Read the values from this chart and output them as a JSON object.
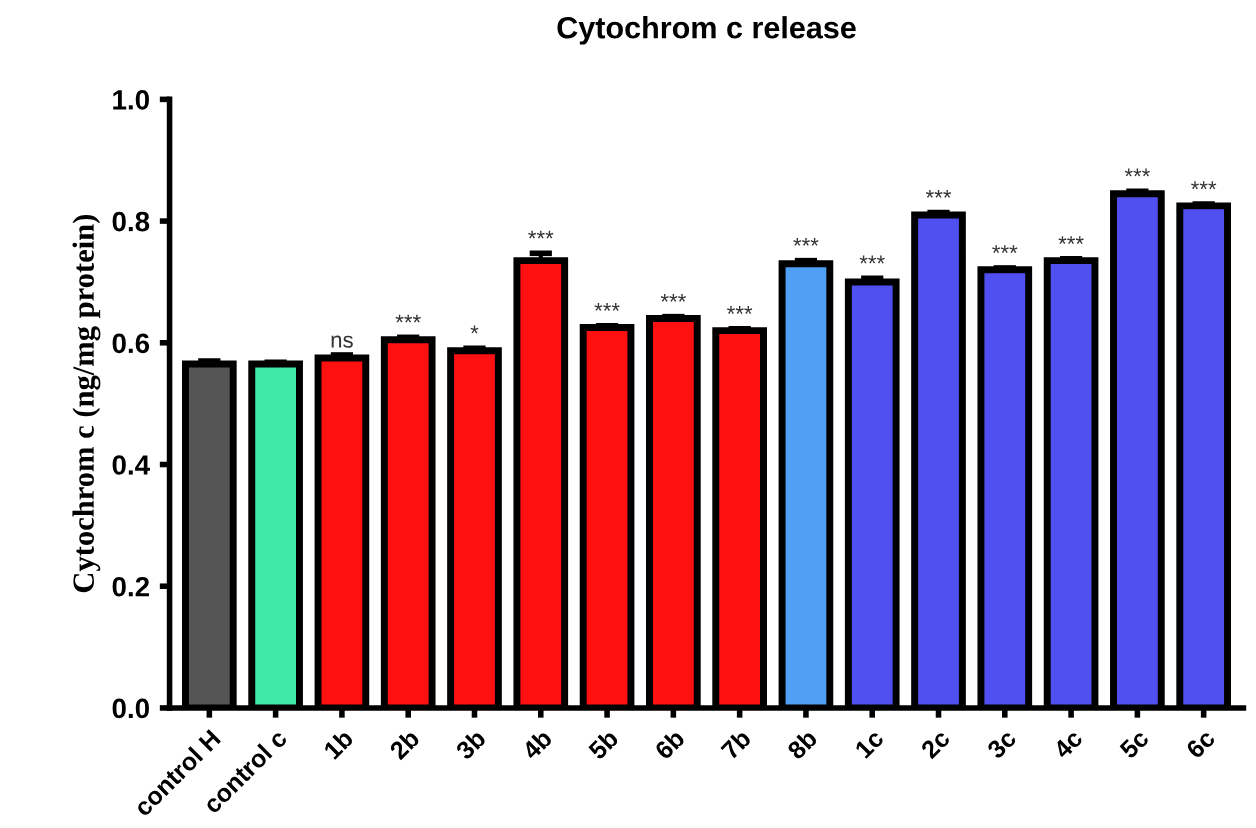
{
  "chart_data": {
    "type": "bar",
    "title": "Cytochrom c release",
    "ylabel": "Cytochrom c (ng/mg protein)",
    "categories": [
      "control H",
      "control c",
      "1b",
      "2b",
      "3b",
      "4b",
      "5b",
      "6b",
      "7b",
      "8b",
      "1c",
      "2c",
      "3c",
      "4c",
      "5c",
      "6c"
    ],
    "values": [
      0.565,
      0.565,
      0.575,
      0.605,
      0.587,
      0.735,
      0.625,
      0.64,
      0.62,
      0.73,
      0.7,
      0.81,
      0.72,
      0.735,
      0.845,
      0.825
    ],
    "errors": [
      0.005,
      0.003,
      0.005,
      0.004,
      0.004,
      0.012,
      0.003,
      0.003,
      0.003,
      0.005,
      0.006,
      0.004,
      0.003,
      0.003,
      0.004,
      0.003
    ],
    "colors": [
      "#555555",
      "#40e8a8",
      "#ff1010",
      "#ff1010",
      "#ff1010",
      "#ff1010",
      "#ff1010",
      "#ff1010",
      "#ff1010",
      "#4f9ff5",
      "#5050f0",
      "#5050f0",
      "#5050f0",
      "#5050f0",
      "#5050f0",
      "#5050f0"
    ],
    "ylim": [
      0.0,
      1.0
    ],
    "yticks": [
      {
        "value": 0.0,
        "label": "0.0"
      },
      {
        "value": 0.2,
        "label": "0.2"
      },
      {
        "value": 0.4,
        "label": "0.4"
      },
      {
        "value": 0.6,
        "label": "0.6"
      },
      {
        "value": 0.8,
        "label": "0.8"
      },
      {
        "value": 1.0,
        "label": "1.0"
      }
    ],
    "annotations": [
      {
        "text": "ns",
        "x": "1b",
        "y": 0.58
      },
      {
        "text": "***",
        "x": "2b",
        "y": 0.609
      },
      {
        "text": "*",
        "x": "3b",
        "y": 0.591
      },
      {
        "text": "***",
        "x": "4b",
        "y": 0.747
      },
      {
        "text": "***",
        "x": "5b",
        "y": 0.628
      },
      {
        "text": "***",
        "x": "6b",
        "y": 0.643
      },
      {
        "text": "***",
        "x": "7b",
        "y": 0.623
      },
      {
        "text": "***",
        "x": "8b",
        "y": 0.735
      },
      {
        "text": "***",
        "x": "1c",
        "y": 0.706
      },
      {
        "text": "***",
        "x": "2c",
        "y": 0.814
      },
      {
        "text": "***",
        "x": "3c",
        "y": 0.723
      },
      {
        "text": "***",
        "x": "4c",
        "y": 0.738
      },
      {
        "text": "***",
        "x": "5c",
        "y": 0.849
      },
      {
        "text": "***",
        "x": "6c",
        "y": 0.828
      }
    ],
    "grid": false,
    "legend": false
  }
}
